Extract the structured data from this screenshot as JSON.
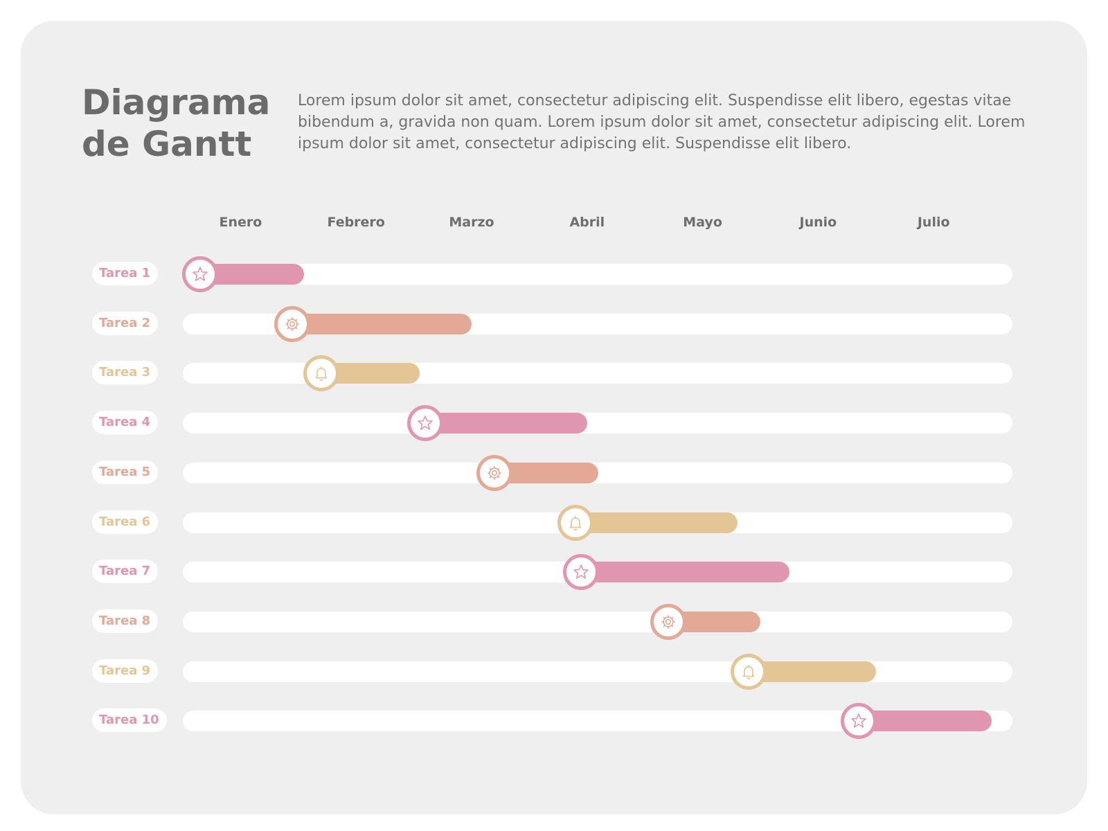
{
  "header": {
    "title": "Diagrama de Gantt",
    "description": "Lorem ipsum dolor sit amet, consectetur adipiscing elit. Suspendisse elit libero, egestas vitae bibendum a, gravida non quam. Lorem ipsum dolor sit amet, consectetur adipiscing elit. Lorem ipsum dolor sit amet, consectetur adipiscing elit. Suspendisse elit libero."
  },
  "colors": {
    "pink": "#e096b1",
    "salmon": "#e3a996",
    "sand": "#e3c596",
    "track": "#ffffff",
    "card": "#efefef"
  },
  "chart_data": {
    "type": "gantt",
    "title": "Diagrama de Gantt",
    "months": [
      "Enero",
      "Febrero",
      "Marzo",
      "Abril",
      "Mayo",
      "Junio",
      "Julio"
    ],
    "x_range_months": [
      0,
      7
    ],
    "tasks": [
      {
        "label": "Tarea 1",
        "start": 0.15,
        "end": 1.05,
        "color": "pink",
        "icon": "star-icon"
      },
      {
        "label": "Tarea 2",
        "start": 0.95,
        "end": 2.5,
        "color": "salmon",
        "icon": "gear-icon"
      },
      {
        "label": "Tarea 3",
        "start": 1.2,
        "end": 2.05,
        "color": "sand",
        "icon": "bell-icon"
      },
      {
        "label": "Tarea 4",
        "start": 2.1,
        "end": 3.5,
        "color": "pink",
        "icon": "star-icon"
      },
      {
        "label": "Tarea 5",
        "start": 2.7,
        "end": 3.6,
        "color": "salmon",
        "icon": "gear-icon"
      },
      {
        "label": "Tarea 6",
        "start": 3.4,
        "end": 4.8,
        "color": "sand",
        "icon": "bell-icon"
      },
      {
        "label": "Tarea 7",
        "start": 3.45,
        "end": 5.25,
        "color": "pink",
        "icon": "star-icon"
      },
      {
        "label": "Tarea 8",
        "start": 4.2,
        "end": 5.0,
        "color": "salmon",
        "icon": "gear-icon"
      },
      {
        "label": "Tarea 9",
        "start": 4.9,
        "end": 6.0,
        "color": "sand",
        "icon": "bell-icon"
      },
      {
        "label": "Tarea 10",
        "start": 5.85,
        "end": 7.0,
        "color": "pink",
        "icon": "star-icon"
      }
    ]
  }
}
